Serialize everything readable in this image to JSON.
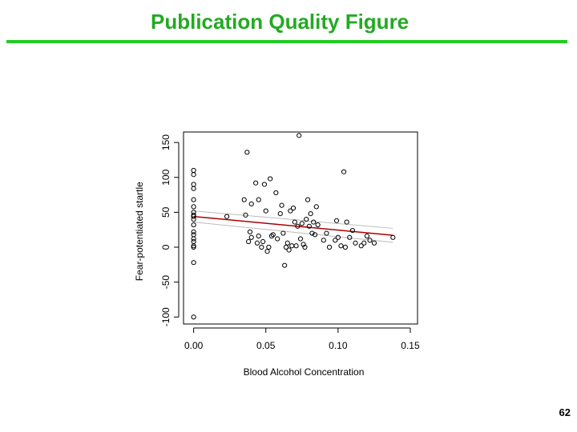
{
  "slide": {
    "title": "Publication Quality Figure",
    "page_number": "62",
    "accent_color": "#22cc22"
  },
  "chart_data": {
    "type": "scatter",
    "xlabel": "Blood Alcohol Concentration",
    "ylabel": "Fear-potentiated startle",
    "xlim": [
      -0.007,
      0.155
    ],
    "ylim": [
      -110,
      165
    ],
    "x_ticks": [
      {
        "value": 0.0,
        "label": "0.00"
      },
      {
        "value": 0.05,
        "label": "0.05"
      },
      {
        "value": 0.1,
        "label": "0.10"
      },
      {
        "value": 0.15,
        "label": "0.15"
      }
    ],
    "y_ticks": [
      {
        "value": -100,
        "label": "-100"
      },
      {
        "value": -50,
        "label": "-50"
      },
      {
        "value": 0,
        "label": "0"
      },
      {
        "value": 50,
        "label": "50"
      },
      {
        "value": 100,
        "label": "100"
      },
      {
        "value": 150,
        "label": "150"
      }
    ],
    "grid": false,
    "point_color": "#000000",
    "fit_line_color": "#aa0000",
    "band_color": "#bbbbbb",
    "fit_line": {
      "x": [
        0.0,
        0.138
      ],
      "y": [
        44,
        17
      ]
    },
    "confidence_band": {
      "upper": {
        "x": [
          0.0,
          0.138
        ],
        "y": [
          52,
          27
        ]
      },
      "lower": {
        "x": [
          0.0,
          0.138
        ],
        "y": [
          36,
          7
        ]
      }
    },
    "points": [
      [
        0.0,
        110
      ],
      [
        0.0,
        104
      ],
      [
        0.0,
        90
      ],
      [
        0.0,
        84
      ],
      [
        0.0,
        68
      ],
      [
        0.0,
        58
      ],
      [
        0.0,
        50
      ],
      [
        0.0,
        46
      ],
      [
        0.0,
        44
      ],
      [
        0.0,
        40
      ],
      [
        0.0,
        32
      ],
      [
        0.0,
        22
      ],
      [
        0.0,
        18
      ],
      [
        0.0,
        12
      ],
      [
        0.0,
        8
      ],
      [
        0.0,
        2
      ],
      [
        0.0,
        0
      ],
      [
        0.0,
        -22
      ],
      [
        0.0,
        -100
      ],
      [
        0.023,
        44
      ],
      [
        0.035,
        68
      ],
      [
        0.036,
        46
      ],
      [
        0.037,
        136
      ],
      [
        0.038,
        8
      ],
      [
        0.039,
        22
      ],
      [
        0.04,
        14
      ],
      [
        0.04,
        62
      ],
      [
        0.043,
        92
      ],
      [
        0.044,
        6
      ],
      [
        0.045,
        16
      ],
      [
        0.045,
        68
      ],
      [
        0.047,
        0
      ],
      [
        0.048,
        8
      ],
      [
        0.049,
        90
      ],
      [
        0.05,
        52
      ],
      [
        0.051,
        -6
      ],
      [
        0.052,
        0
      ],
      [
        0.053,
        98
      ],
      [
        0.054,
        16
      ],
      [
        0.055,
        18
      ],
      [
        0.057,
        78
      ],
      [
        0.058,
        12
      ],
      [
        0.06,
        48
      ],
      [
        0.061,
        60
      ],
      [
        0.062,
        20
      ],
      [
        0.063,
        -26
      ],
      [
        0.064,
        0
      ],
      [
        0.065,
        6
      ],
      [
        0.066,
        -4
      ],
      [
        0.067,
        52
      ],
      [
        0.068,
        2
      ],
      [
        0.069,
        56
      ],
      [
        0.07,
        36
      ],
      [
        0.071,
        2
      ],
      [
        0.072,
        30
      ],
      [
        0.073,
        160
      ],
      [
        0.074,
        12
      ],
      [
        0.075,
        34
      ],
      [
        0.076,
        4
      ],
      [
        0.077,
        0
      ],
      [
        0.078,
        40
      ],
      [
        0.079,
        68
      ],
      [
        0.08,
        30
      ],
      [
        0.081,
        48
      ],
      [
        0.082,
        20
      ],
      [
        0.083,
        36
      ],
      [
        0.084,
        18
      ],
      [
        0.085,
        58
      ],
      [
        0.086,
        32
      ],
      [
        0.09,
        10
      ],
      [
        0.092,
        20
      ],
      [
        0.094,
        0
      ],
      [
        0.098,
        10
      ],
      [
        0.099,
        38
      ],
      [
        0.1,
        14
      ],
      [
        0.102,
        2
      ],
      [
        0.104,
        108
      ],
      [
        0.105,
        0
      ],
      [
        0.106,
        36
      ],
      [
        0.108,
        14
      ],
      [
        0.11,
        24
      ],
      [
        0.112,
        6
      ],
      [
        0.116,
        2
      ],
      [
        0.118,
        6
      ],
      [
        0.12,
        16
      ],
      [
        0.122,
        10
      ],
      [
        0.125,
        6
      ],
      [
        0.138,
        14
      ]
    ]
  }
}
